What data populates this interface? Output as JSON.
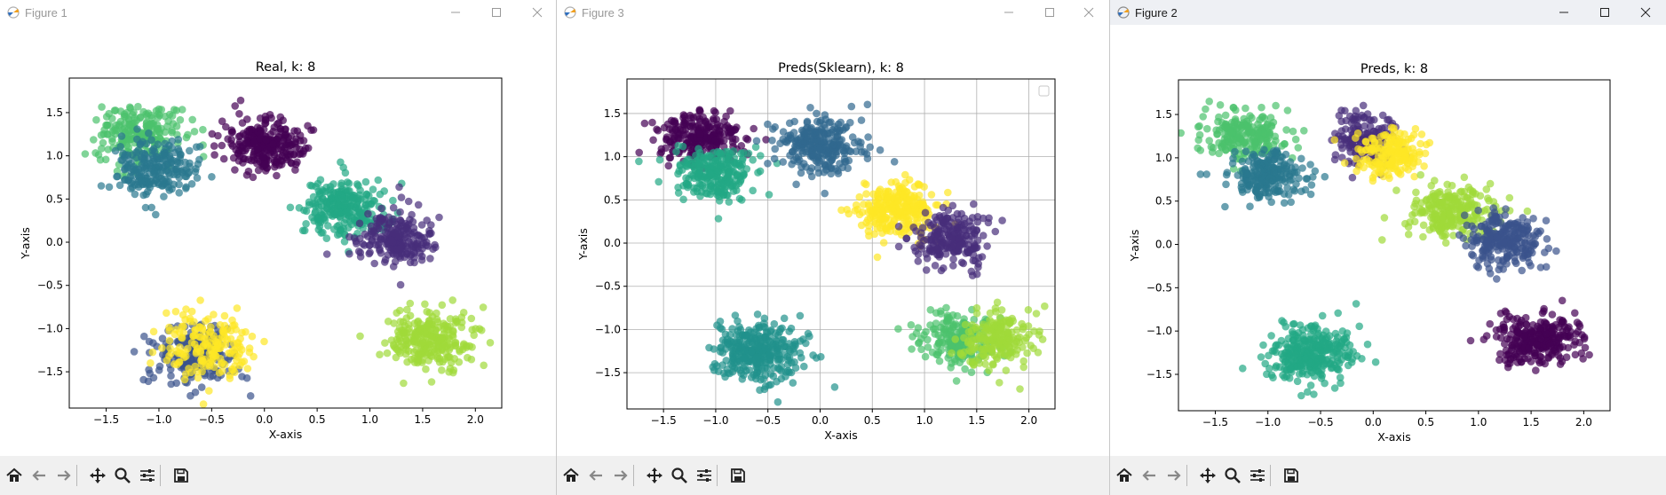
{
  "windows": [
    {
      "id": "w1",
      "title": "Figure 1",
      "active": false,
      "chart_data": {
        "type": "scatter",
        "title": "Real, k: 8",
        "xlabel": "X-axis",
        "ylabel": "Y-axis",
        "xlim": [
          -1.85,
          2.25
        ],
        "ylim": [
          -1.92,
          1.9
        ],
        "xticks": [
          -1.5,
          -1.0,
          -0.5,
          0.0,
          0.5,
          1.0,
          1.5,
          2.0
        ],
        "xtick_labels": [
          "−1.5",
          "−1.0",
          "−0.5",
          "0.0",
          "0.5",
          "1.0",
          "1.5",
          "2.0"
        ],
        "yticks": [
          -1.5,
          -1.0,
          -0.5,
          0.0,
          0.5,
          1.0,
          1.5
        ],
        "ytick_labels": [
          "−1.5",
          "−1.0",
          "−0.5",
          "0.0",
          "0.5",
          "1.0",
          "1.5"
        ],
        "grid": false,
        "legend_box": false,
        "clusters": [
          {
            "cx": -1.2,
            "cy": 1.25,
            "sx": 0.2,
            "sy": 0.17,
            "n": 220,
            "color": "#4cc26c"
          },
          {
            "cx": -1.05,
            "cy": 0.85,
            "sx": 0.2,
            "sy": 0.17,
            "n": 220,
            "color": "#2a788e"
          },
          {
            "cx": 0.0,
            "cy": 1.12,
            "sx": 0.2,
            "sy": 0.16,
            "n": 260,
            "color": "#440154"
          },
          {
            "cx": 0.75,
            "cy": 0.4,
            "sx": 0.2,
            "sy": 0.17,
            "n": 260,
            "color": "#22a884"
          },
          {
            "cx": 1.25,
            "cy": 0.05,
            "sx": 0.18,
            "sy": 0.16,
            "n": 220,
            "color": "#472d7b"
          },
          {
            "cx": -0.65,
            "cy": -1.3,
            "sx": 0.22,
            "sy": 0.18,
            "n": 200,
            "color": "#3b528b"
          },
          {
            "cx": -0.55,
            "cy": -1.2,
            "sx": 0.22,
            "sy": 0.18,
            "n": 180,
            "color": "#fde725"
          },
          {
            "cx": 1.55,
            "cy": -1.1,
            "sx": 0.2,
            "sy": 0.17,
            "n": 260,
            "color": "#a0da39"
          }
        ]
      }
    },
    {
      "id": "w3",
      "title": "Figure 3",
      "active": false,
      "chart_data": {
        "type": "scatter",
        "title": "Preds(Sklearn), k: 8",
        "xlabel": "X-axis",
        "ylabel": "Y-axis",
        "xlim": [
          -1.85,
          2.25
        ],
        "ylim": [
          -1.92,
          1.9
        ],
        "xticks": [
          -1.5,
          -1.0,
          -0.5,
          0.0,
          0.5,
          1.0,
          1.5,
          2.0
        ],
        "xtick_labels": [
          "−1.5",
          "−1.0",
          "−0.5",
          "0.0",
          "0.5",
          "1.0",
          "1.5",
          "2.0"
        ],
        "yticks": [
          -1.5,
          -1.0,
          -0.5,
          0.0,
          0.5,
          1.0,
          1.5
        ],
        "ytick_labels": [
          "−1.5",
          "−1.0",
          "−0.5",
          "0.0",
          "0.5",
          "1.0",
          "1.5"
        ],
        "grid": true,
        "legend_box": true,
        "clusters": [
          {
            "cx": -1.15,
            "cy": 1.22,
            "sx": 0.2,
            "sy": 0.14,
            "n": 240,
            "color": "#440154"
          },
          {
            "cx": -1.0,
            "cy": 0.8,
            "sx": 0.2,
            "sy": 0.15,
            "n": 240,
            "color": "#22a884"
          },
          {
            "cx": 0.0,
            "cy": 1.15,
            "sx": 0.2,
            "sy": 0.16,
            "n": 260,
            "color": "#31688e"
          },
          {
            "cx": 0.75,
            "cy": 0.4,
            "sx": 0.2,
            "sy": 0.17,
            "n": 260,
            "color": "#fde725"
          },
          {
            "cx": 1.25,
            "cy": 0.05,
            "sx": 0.18,
            "sy": 0.16,
            "n": 220,
            "color": "#472d7b"
          },
          {
            "cx": -0.6,
            "cy": -1.25,
            "sx": 0.2,
            "sy": 0.17,
            "n": 320,
            "color": "#21918c"
          },
          {
            "cx": 1.35,
            "cy": -1.1,
            "sx": 0.17,
            "sy": 0.16,
            "n": 200,
            "color": "#4cc26c"
          },
          {
            "cx": 1.7,
            "cy": -1.1,
            "sx": 0.17,
            "sy": 0.16,
            "n": 200,
            "color": "#a0da39"
          }
        ]
      }
    },
    {
      "id": "w2",
      "title": "Figure 2",
      "active": true,
      "chart_data": {
        "type": "scatter",
        "title": "Preds, k: 8",
        "xlabel": "X-axis",
        "ylabel": "Y-axis",
        "xlim": [
          -1.85,
          2.25
        ],
        "ylim": [
          -1.92,
          1.9
        ],
        "xticks": [
          -1.5,
          -1.0,
          -0.5,
          0.0,
          0.5,
          1.0,
          1.5,
          2.0
        ],
        "xtick_labels": [
          "−1.5",
          "−1.0",
          "−0.5",
          "0.0",
          "0.5",
          "1.0",
          "1.5",
          "2.0"
        ],
        "yticks": [
          -1.5,
          -1.0,
          -0.5,
          0.0,
          0.5,
          1.0,
          1.5
        ],
        "ytick_labels": [
          "−1.5",
          "−1.0",
          "−0.5",
          "0.0",
          "0.5",
          "1.0",
          "1.5"
        ],
        "grid": false,
        "legend_box": false,
        "clusters": [
          {
            "cx": -1.2,
            "cy": 1.25,
            "sx": 0.2,
            "sy": 0.14,
            "n": 220,
            "color": "#4cc26c"
          },
          {
            "cx": -1.0,
            "cy": 0.8,
            "sx": 0.2,
            "sy": 0.14,
            "n": 220,
            "color": "#2a788e"
          },
          {
            "cx": -0.1,
            "cy": 1.2,
            "sx": 0.15,
            "sy": 0.14,
            "n": 180,
            "color": "#472d7b"
          },
          {
            "cx": 0.15,
            "cy": 1.05,
            "sx": 0.15,
            "sy": 0.14,
            "n": 180,
            "color": "#fde725"
          },
          {
            "cx": 0.75,
            "cy": 0.4,
            "sx": 0.2,
            "sy": 0.16,
            "n": 240,
            "color": "#a0da39"
          },
          {
            "cx": 1.25,
            "cy": 0.05,
            "sx": 0.18,
            "sy": 0.16,
            "n": 240,
            "color": "#3b528b"
          },
          {
            "cx": -0.6,
            "cy": -1.25,
            "sx": 0.2,
            "sy": 0.17,
            "n": 320,
            "color": "#22a884"
          },
          {
            "cx": 1.55,
            "cy": -1.1,
            "sx": 0.2,
            "sy": 0.15,
            "n": 280,
            "color": "#440154"
          }
        ]
      }
    }
  ],
  "toolbar": [
    "home-icon",
    "back-icon",
    "forward-icon",
    "pan-icon",
    "zoom-icon",
    "configure-subplots-icon",
    "save-icon"
  ]
}
